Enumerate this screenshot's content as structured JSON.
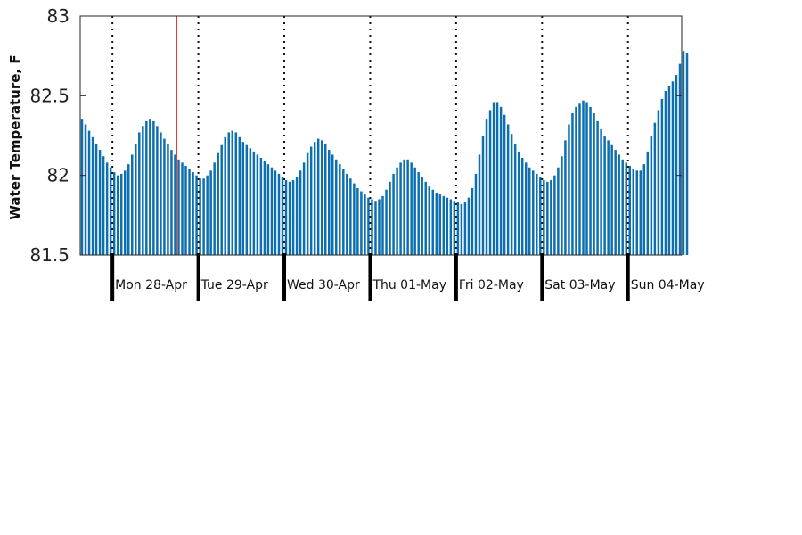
{
  "chart_data": {
    "type": "bar",
    "ylabel": "Water Temperature, F",
    "xlabel": "",
    "ylim": [
      81.5,
      83
    ],
    "yticks": [
      "81.5",
      "82",
      "82.5",
      "83"
    ],
    "series_color": "#0b6fb0",
    "marker_color": "#e8342c",
    "x_start_hour": 0,
    "x_end_hour": 168,
    "hours_per_bar": 1,
    "day_labels": [
      "Mon 28-Apr",
      "Tue 29-Apr",
      "Wed 30-Apr",
      "Thu 01-May",
      "Fri 02-May",
      "Sat 03-May",
      "Sun 04-May"
    ],
    "day_boundaries": [
      9,
      33,
      57,
      81,
      105,
      129,
      153
    ],
    "current_time_marker": 27,
    "values": [
      82.35,
      82.32,
      82.28,
      82.24,
      82.2,
      82.16,
      82.12,
      82.08,
      82.05,
      82.02,
      82.0,
      82.01,
      82.03,
      82.07,
      82.13,
      82.2,
      82.27,
      82.31,
      82.34,
      82.35,
      82.34,
      82.31,
      82.27,
      82.23,
      82.2,
      82.16,
      82.13,
      82.1,
      82.08,
      82.06,
      82.04,
      82.02,
      82.0,
      81.98,
      81.98,
      82.0,
      82.03,
      82.08,
      82.14,
      82.19,
      82.24,
      82.27,
      82.28,
      82.27,
      82.24,
      82.21,
      82.19,
      82.17,
      82.15,
      82.13,
      82.11,
      82.09,
      82.07,
      82.05,
      82.03,
      82.01,
      81.99,
      81.97,
      81.96,
      81.97,
      81.99,
      82.03,
      82.08,
      82.14,
      82.18,
      82.21,
      82.23,
      82.22,
      82.2,
      82.16,
      82.13,
      82.1,
      82.07,
      82.04,
      82.01,
      81.98,
      81.95,
      81.92,
      81.9,
      81.88,
      81.86,
      81.85,
      81.84,
      81.85,
      81.87,
      81.91,
      81.96,
      82.01,
      82.05,
      82.08,
      82.1,
      82.1,
      82.08,
      82.05,
      82.02,
      81.99,
      81.96,
      81.93,
      81.91,
      81.89,
      81.88,
      81.87,
      81.86,
      81.85,
      81.84,
      81.83,
      81.82,
      81.83,
      81.86,
      81.92,
      82.01,
      82.13,
      82.25,
      82.35,
      82.41,
      82.46,
      82.46,
      82.43,
      82.38,
      82.32,
      82.26,
      82.2,
      82.15,
      82.11,
      82.08,
      82.05,
      82.03,
      82.01,
      81.99,
      81.97,
      81.96,
      81.97,
      82.0,
      82.05,
      82.12,
      82.22,
      82.32,
      82.39,
      82.43,
      82.45,
      82.47,
      82.46,
      82.43,
      82.39,
      82.34,
      82.29,
      82.25,
      82.22,
      82.19,
      82.16,
      82.13,
      82.1,
      82.08,
      82.06,
      82.04,
      82.03,
      82.03,
      82.07,
      82.15,
      82.25,
      82.33,
      82.41,
      82.48,
      82.53,
      82.56,
      82.59,
      82.63,
      82.7,
      82.78,
      82.77
    ]
  }
}
